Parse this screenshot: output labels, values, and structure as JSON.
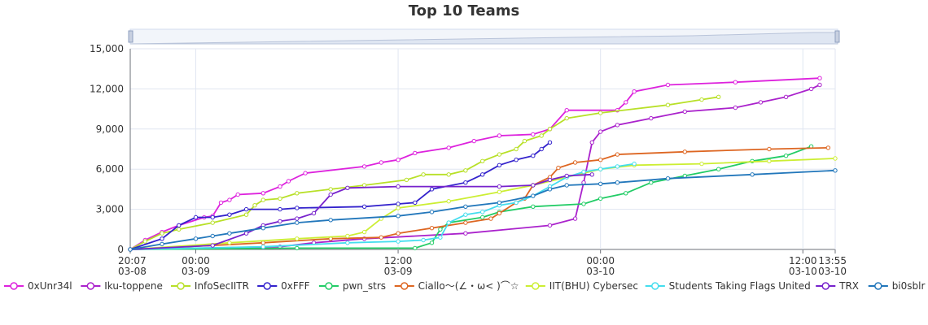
{
  "chart_data": {
    "type": "line",
    "title": "Top 10 Teams",
    "xlabel": "",
    "ylabel": "",
    "ylim": [
      0,
      15000
    ],
    "xlim": [
      "2024-03-08T20:07",
      "2024-03-10T13:55"
    ],
    "y_ticks": [
      "0",
      "3,000",
      "6,000",
      "9,000",
      "12,000",
      "15,000"
    ],
    "x_ticks": [
      {
        "t": "2024-03-08T20:07",
        "line1": "20:07",
        "line2": "03-08"
      },
      {
        "t": "2024-03-09T00:00",
        "line1": "00:00",
        "line2": "03-09"
      },
      {
        "t": "2024-03-09T12:00",
        "line1": "12:00",
        "line2": "03-09"
      },
      {
        "t": "2024-03-10T00:00",
        "line1": "00:00",
        "line2": "03-10"
      },
      {
        "t": "2024-03-10T12:00",
        "line1": "12:00",
        "line2": "03-10"
      },
      {
        "t": "2024-03-10T13:55",
        "line1": "13:55",
        "line2": "03-10"
      }
    ],
    "grid": true,
    "legend_position": "bottom",
    "data_zoom_slider": true,
    "series": [
      {
        "name": "0xUnr34l",
        "color": "#dd22dd",
        "points": [
          [
            "2024-03-08T20:07",
            0
          ],
          [
            "2024-03-08T21:00",
            700
          ],
          [
            "2024-03-08T22:00",
            1300
          ],
          [
            "2024-03-08T23:00",
            1800
          ],
          [
            "2024-03-09T00:30",
            2400
          ],
          [
            "2024-03-09T01:00",
            2500
          ],
          [
            "2024-03-09T01:30",
            3500
          ],
          [
            "2024-03-09T02:00",
            3700
          ],
          [
            "2024-03-09T02:30",
            4100
          ],
          [
            "2024-03-09T04:00",
            4200
          ],
          [
            "2024-03-09T05:00",
            4700
          ],
          [
            "2024-03-09T05:30",
            5100
          ],
          [
            "2024-03-09T06:30",
            5700
          ],
          [
            "2024-03-09T10:00",
            6200
          ],
          [
            "2024-03-09T11:00",
            6500
          ],
          [
            "2024-03-09T12:00",
            6700
          ],
          [
            "2024-03-09T13:00",
            7200
          ],
          [
            "2024-03-09T15:00",
            7600
          ],
          [
            "2024-03-09T16:30",
            8100
          ],
          [
            "2024-03-09T18:00",
            8500
          ],
          [
            "2024-03-09T20:00",
            8600
          ],
          [
            "2024-03-09T21:00",
            9000
          ],
          [
            "2024-03-09T22:00",
            10400
          ],
          [
            "2024-03-10T01:00",
            10400
          ],
          [
            "2024-03-10T01:30",
            11000
          ],
          [
            "2024-03-10T02:00",
            11800
          ],
          [
            "2024-03-10T04:00",
            12300
          ],
          [
            "2024-03-10T08:00",
            12500
          ],
          [
            "2024-03-10T13:00",
            12800
          ]
        ]
      },
      {
        "name": "Iku-toppene",
        "color": "#aa22cc",
        "points": [
          [
            "2024-03-08T20:07",
            0
          ],
          [
            "2024-03-09T05:00",
            200
          ],
          [
            "2024-03-09T07:00",
            500
          ],
          [
            "2024-03-09T10:00",
            800
          ],
          [
            "2024-03-09T16:00",
            1200
          ],
          [
            "2024-03-09T21:00",
            1800
          ],
          [
            "2024-03-09T22:30",
            2300
          ],
          [
            "2024-03-09T23:00",
            5000
          ],
          [
            "2024-03-09T23:30",
            8000
          ],
          [
            "2024-03-10T00:00",
            8800
          ],
          [
            "2024-03-10T01:00",
            9300
          ],
          [
            "2024-03-10T03:00",
            9800
          ],
          [
            "2024-03-10T05:00",
            10300
          ],
          [
            "2024-03-10T08:00",
            10600
          ],
          [
            "2024-03-10T09:30",
            11000
          ],
          [
            "2024-03-10T11:00",
            11400
          ],
          [
            "2024-03-10T12:30",
            12000
          ],
          [
            "2024-03-10T13:00",
            12300
          ]
        ]
      },
      {
        "name": "InfoSecIITR",
        "color": "#b8e028",
        "points": [
          [
            "2024-03-08T20:07",
            0
          ],
          [
            "2024-03-08T21:00",
            600
          ],
          [
            "2024-03-08T22:00",
            1200
          ],
          [
            "2024-03-08T23:00",
            1500
          ],
          [
            "2024-03-09T01:00",
            2000
          ],
          [
            "2024-03-09T03:00",
            2600
          ],
          [
            "2024-03-09T03:30",
            3300
          ],
          [
            "2024-03-09T04:00",
            3700
          ],
          [
            "2024-03-09T05:00",
            3800
          ],
          [
            "2024-03-09T06:00",
            4200
          ],
          [
            "2024-03-09T08:00",
            4500
          ],
          [
            "2024-03-09T10:00",
            4800
          ],
          [
            "2024-03-09T12:30",
            5200
          ],
          [
            "2024-03-09T13:30",
            5600
          ],
          [
            "2024-03-09T15:00",
            5600
          ],
          [
            "2024-03-09T16:00",
            5900
          ],
          [
            "2024-03-09T17:00",
            6600
          ],
          [
            "2024-03-09T18:00",
            7100
          ],
          [
            "2024-03-09T19:00",
            7500
          ],
          [
            "2024-03-09T19:30",
            8100
          ],
          [
            "2024-03-09T20:30",
            8500
          ],
          [
            "2024-03-09T21:00",
            9000
          ],
          [
            "2024-03-09T22:00",
            9800
          ],
          [
            "2024-03-10T00:00",
            10200
          ],
          [
            "2024-03-10T04:00",
            10800
          ],
          [
            "2024-03-10T06:00",
            11200
          ],
          [
            "2024-03-10T07:00",
            11400
          ]
        ]
      },
      {
        "name": "0xFFF",
        "color": "#3322cc",
        "points": [
          [
            "2024-03-08T20:07",
            0
          ],
          [
            "2024-03-08T22:00",
            800
          ],
          [
            "2024-03-08T23:00",
            1800
          ],
          [
            "2024-03-09T00:00",
            2400
          ],
          [
            "2024-03-09T01:00",
            2400
          ],
          [
            "2024-03-09T02:00",
            2600
          ],
          [
            "2024-03-09T03:00",
            3000
          ],
          [
            "2024-03-09T05:00",
            3000
          ],
          [
            "2024-03-09T06:00",
            3100
          ],
          [
            "2024-03-09T10:00",
            3200
          ],
          [
            "2024-03-09T12:00",
            3400
          ],
          [
            "2024-03-09T13:00",
            3500
          ],
          [
            "2024-03-09T14:00",
            4500
          ],
          [
            "2024-03-09T16:00",
            5000
          ],
          [
            "2024-03-09T17:00",
            5600
          ],
          [
            "2024-03-09T18:00",
            6300
          ],
          [
            "2024-03-09T19:00",
            6700
          ],
          [
            "2024-03-09T20:00",
            7000
          ],
          [
            "2024-03-09T20:30",
            7500
          ],
          [
            "2024-03-09T21:00",
            8000
          ]
        ]
      },
      {
        "name": "pwn_strs",
        "color": "#22cc66",
        "points": [
          [
            "2024-03-08T20:07",
            0
          ],
          [
            "2024-03-09T06:00",
            100
          ],
          [
            "2024-03-09T13:00",
            100
          ],
          [
            "2024-03-09T14:00",
            500
          ],
          [
            "2024-03-09T14:30",
            1500
          ],
          [
            "2024-03-09T15:00",
            2000
          ],
          [
            "2024-03-09T17:00",
            2400
          ],
          [
            "2024-03-09T18:00",
            2800
          ],
          [
            "2024-03-09T20:00",
            3200
          ],
          [
            "2024-03-09T23:00",
            3400
          ],
          [
            "2024-03-10T00:00",
            3800
          ],
          [
            "2024-03-10T01:30",
            4200
          ],
          [
            "2024-03-10T03:00",
            5000
          ],
          [
            "2024-03-10T05:00",
            5500
          ],
          [
            "2024-03-10T07:00",
            6000
          ],
          [
            "2024-03-10T09:00",
            6600
          ],
          [
            "2024-03-10T11:00",
            7000
          ],
          [
            "2024-03-10T12:30",
            7700
          ]
        ]
      },
      {
        "name": "Ciallo～(∠・ω< )⌒☆",
        "color": "#dd6622",
        "points": [
          [
            "2024-03-08T20:07",
            0
          ],
          [
            "2024-03-09T01:00",
            300
          ],
          [
            "2024-03-09T04:00",
            500
          ],
          [
            "2024-03-09T08:00",
            800
          ],
          [
            "2024-03-09T11:00",
            900
          ],
          [
            "2024-03-09T12:00",
            1200
          ],
          [
            "2024-03-09T14:00",
            1600
          ],
          [
            "2024-03-09T16:00",
            2000
          ],
          [
            "2024-03-09T17:30",
            2300
          ],
          [
            "2024-03-09T18:00",
            2700
          ],
          [
            "2024-03-09T19:00",
            3500
          ],
          [
            "2024-03-09T19:30",
            3800
          ],
          [
            "2024-03-09T20:00",
            4800
          ],
          [
            "2024-03-09T21:00",
            5400
          ],
          [
            "2024-03-09T21:30",
            6100
          ],
          [
            "2024-03-09T22:30",
            6500
          ],
          [
            "2024-03-10T00:00",
            6700
          ],
          [
            "2024-03-10T01:00",
            7100
          ],
          [
            "2024-03-10T05:00",
            7300
          ],
          [
            "2024-03-10T10:00",
            7500
          ],
          [
            "2024-03-10T13:30",
            7600
          ]
        ]
      },
      {
        "name": "IIT(BHU) Cybersec",
        "color": "#ccee33",
        "points": [
          [
            "2024-03-08T20:07",
            0
          ],
          [
            "2024-03-09T02:00",
            500
          ],
          [
            "2024-03-09T06:00",
            800
          ],
          [
            "2024-03-09T09:00",
            1000
          ],
          [
            "2024-03-09T10:00",
            1300
          ],
          [
            "2024-03-09T11:00",
            2300
          ],
          [
            "2024-03-09T12:00",
            3100
          ],
          [
            "2024-03-09T15:00",
            3600
          ],
          [
            "2024-03-09T18:00",
            4300
          ],
          [
            "2024-03-09T20:00",
            4800
          ],
          [
            "2024-03-09T22:00",
            5400
          ],
          [
            "2024-03-10T00:00",
            6000
          ],
          [
            "2024-03-10T02:00",
            6300
          ],
          [
            "2024-03-10T06:00",
            6400
          ],
          [
            "2024-03-10T10:00",
            6600
          ],
          [
            "2024-03-10T13:55",
            6800
          ]
        ]
      },
      {
        "name": "Students Taking Flags United",
        "color": "#44ddee",
        "points": [
          [
            "2024-03-08T20:07",
            0
          ],
          [
            "2024-03-09T04:00",
            200
          ],
          [
            "2024-03-09T09:00",
            500
          ],
          [
            "2024-03-09T12:00",
            600
          ],
          [
            "2024-03-09T13:30",
            700
          ],
          [
            "2024-03-09T14:30",
            900
          ],
          [
            "2024-03-09T15:00",
            2000
          ],
          [
            "2024-03-09T16:00",
            2600
          ],
          [
            "2024-03-09T17:00",
            2800
          ],
          [
            "2024-03-09T18:00",
            3300
          ],
          [
            "2024-03-09T19:00",
            3500
          ],
          [
            "2024-03-09T20:00",
            4000
          ],
          [
            "2024-03-09T21:00",
            4700
          ],
          [
            "2024-03-09T22:00",
            5400
          ],
          [
            "2024-03-09T23:00",
            5800
          ],
          [
            "2024-03-10T00:00",
            6000
          ],
          [
            "2024-03-10T01:00",
            6200
          ],
          [
            "2024-03-10T02:00",
            6400
          ]
        ]
      },
      {
        "name": "TRX",
        "color": "#7722cc",
        "points": [
          [
            "2024-03-08T20:07",
            0
          ],
          [
            "2024-03-09T01:00",
            300
          ],
          [
            "2024-03-09T03:00",
            1200
          ],
          [
            "2024-03-09T04:00",
            1800
          ],
          [
            "2024-03-09T05:00",
            2100
          ],
          [
            "2024-03-09T06:00",
            2300
          ],
          [
            "2024-03-09T07:00",
            2700
          ],
          [
            "2024-03-09T08:00",
            4100
          ],
          [
            "2024-03-09T09:00",
            4600
          ],
          [
            "2024-03-09T12:00",
            4700
          ],
          [
            "2024-03-09T18:00",
            4700
          ],
          [
            "2024-03-09T20:00",
            4800
          ],
          [
            "2024-03-09T21:00",
            5200
          ],
          [
            "2024-03-09T22:00",
            5500
          ],
          [
            "2024-03-09T23:30",
            5600
          ]
        ]
      },
      {
        "name": "bi0sblr",
        "color": "#2277bb",
        "points": [
          [
            "2024-03-08T20:07",
            0
          ],
          [
            "2024-03-08T22:00",
            400
          ],
          [
            "2024-03-09T00:00",
            800
          ],
          [
            "2024-03-09T01:00",
            1000
          ],
          [
            "2024-03-09T02:00",
            1200
          ],
          [
            "2024-03-09T04:00",
            1600
          ],
          [
            "2024-03-09T06:00",
            2000
          ],
          [
            "2024-03-09T08:00",
            2200
          ],
          [
            "2024-03-09T12:00",
            2500
          ],
          [
            "2024-03-09T14:00",
            2800
          ],
          [
            "2024-03-09T16:00",
            3200
          ],
          [
            "2024-03-09T18:00",
            3500
          ],
          [
            "2024-03-09T20:00",
            4000
          ],
          [
            "2024-03-09T21:00",
            4500
          ],
          [
            "2024-03-09T22:00",
            4800
          ],
          [
            "2024-03-10T00:00",
            4900
          ],
          [
            "2024-03-10T01:00",
            5000
          ],
          [
            "2024-03-10T04:00",
            5300
          ],
          [
            "2024-03-10T09:00",
            5600
          ],
          [
            "2024-03-10T13:55",
            5900
          ]
        ]
      }
    ]
  }
}
